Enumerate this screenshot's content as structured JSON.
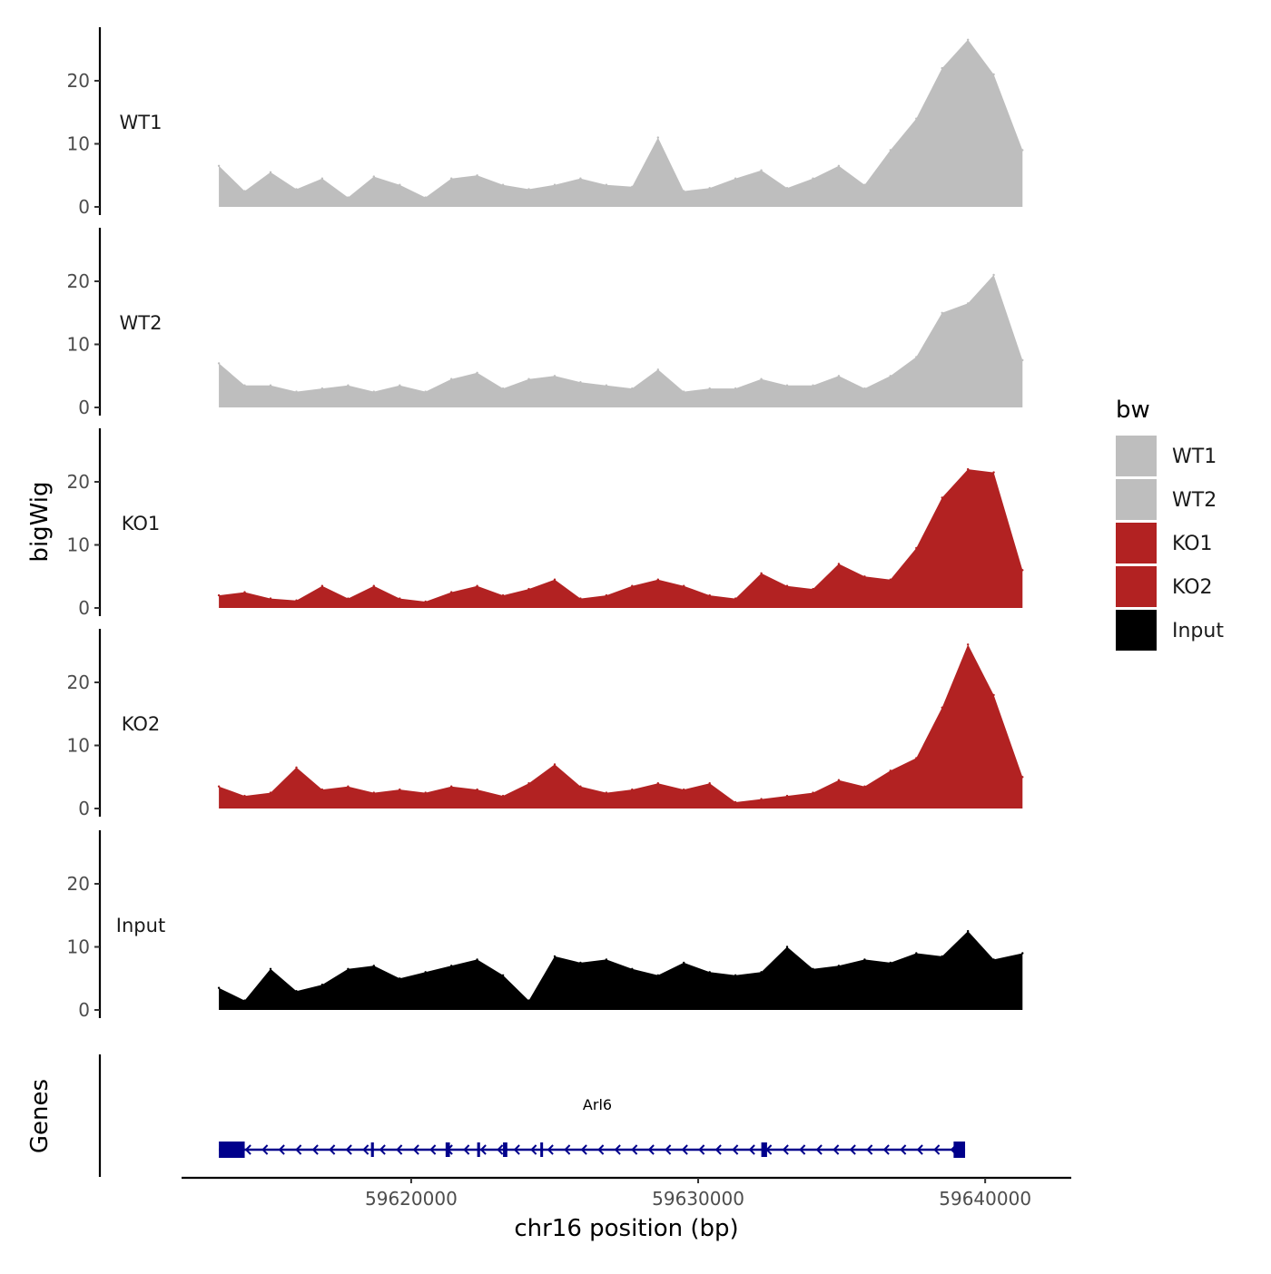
{
  "chart_data": {
    "type": "area",
    "title": "",
    "xlabel": "chr16 position (bp)",
    "ylabel": "bigWig",
    "gene_track_label": "Genes",
    "xlim": [
      59612000,
      59643000
    ],
    "ylim": [
      0,
      28
    ],
    "x_ticks": [
      59620000,
      59630000,
      59640000
    ],
    "x_tick_labels": [
      "59620000",
      "59630000",
      "59640000"
    ],
    "y_ticks": [
      0,
      10,
      20
    ],
    "y_tick_labels": [
      "0",
      "10",
      "20"
    ],
    "legend_title": "bw",
    "legend_position": "right",
    "x": [
      59613300,
      59614200,
      59615100,
      59616000,
      59616900,
      59617800,
      59618700,
      59619600,
      59620500,
      59621400,
      59622300,
      59623200,
      59624100,
      59625000,
      59625900,
      59626800,
      59627700,
      59628600,
      59629500,
      59630400,
      59631300,
      59632200,
      59633100,
      59634000,
      59634900,
      59635800,
      59636700,
      59637600,
      59638500,
      59639400,
      59640300,
      59641300
    ],
    "series": [
      {
        "name": "WT1",
        "color": "#bebebe",
        "values": [
          6.5,
          2.5,
          5.5,
          2.8,
          4.5,
          1.5,
          4.8,
          3.5,
          1.5,
          4.5,
          5.0,
          3.5,
          2.8,
          3.5,
          4.5,
          3.5,
          3.2,
          11.0,
          2.5,
          3.0,
          4.5,
          5.8,
          3.0,
          4.5,
          6.5,
          3.5,
          9.0,
          14.0,
          22.0,
          26.5,
          21.0,
          9.0
        ]
      },
      {
        "name": "WT2",
        "color": "#bebebe",
        "values": [
          7.0,
          3.5,
          3.5,
          2.5,
          3.0,
          3.5,
          2.5,
          3.5,
          2.5,
          4.5,
          5.5,
          3.0,
          4.5,
          5.0,
          4.0,
          3.5,
          3.0,
          6.0,
          2.5,
          3.0,
          3.0,
          4.5,
          3.5,
          3.5,
          5.0,
          3.0,
          5.0,
          8.0,
          15.0,
          16.5,
          21.0,
          7.5
        ]
      },
      {
        "name": "KO1",
        "color": "#b22222",
        "values": [
          2.0,
          2.5,
          1.5,
          1.2,
          3.5,
          1.5,
          3.5,
          1.5,
          1.0,
          2.5,
          3.5,
          2.0,
          3.0,
          4.5,
          1.5,
          2.0,
          3.5,
          4.5,
          3.5,
          2.0,
          1.5,
          5.5,
          3.5,
          3.0,
          7.0,
          5.0,
          4.5,
          9.5,
          17.5,
          22.0,
          21.5,
          6.0
        ]
      },
      {
        "name": "KO2",
        "color": "#b22222",
        "values": [
          3.5,
          2.0,
          2.5,
          6.5,
          3.0,
          3.5,
          2.5,
          3.0,
          2.5,
          3.5,
          3.0,
          2.0,
          4.0,
          7.0,
          3.5,
          2.5,
          3.0,
          4.0,
          3.0,
          4.0,
          1.0,
          1.5,
          2.0,
          2.5,
          4.5,
          3.5,
          6.0,
          8.0,
          16.0,
          26.0,
          18.0,
          5.0
        ]
      },
      {
        "name": "Input",
        "color": "#000000",
        "values": [
          3.5,
          1.5,
          6.5,
          3.0,
          4.0,
          6.5,
          7.0,
          5.0,
          6.0,
          7.0,
          8.0,
          5.5,
          1.5,
          8.5,
          7.5,
          8.0,
          6.5,
          5.5,
          7.5,
          6.0,
          5.5,
          6.0,
          10.0,
          6.5,
          7.0,
          8.0,
          7.5,
          9.0,
          8.5,
          12.5,
          8.0,
          9.0
        ]
      }
    ],
    "gene": {
      "name": "Arl6",
      "strand": "-",
      "start": 59613300,
      "end": 59639300,
      "color": "#00008b",
      "exons": [
        {
          "start": 59613300,
          "end": 59614200
        },
        {
          "start": 59618600,
          "end": 59618700
        },
        {
          "start": 59621200,
          "end": 59621350
        },
        {
          "start": 59622300,
          "end": 59622400
        },
        {
          "start": 59623200,
          "end": 59623350
        },
        {
          "start": 59624500,
          "end": 59624550
        },
        {
          "start": 59632200,
          "end": 59632400
        },
        {
          "start": 59638900,
          "end": 59639300
        }
      ]
    }
  }
}
